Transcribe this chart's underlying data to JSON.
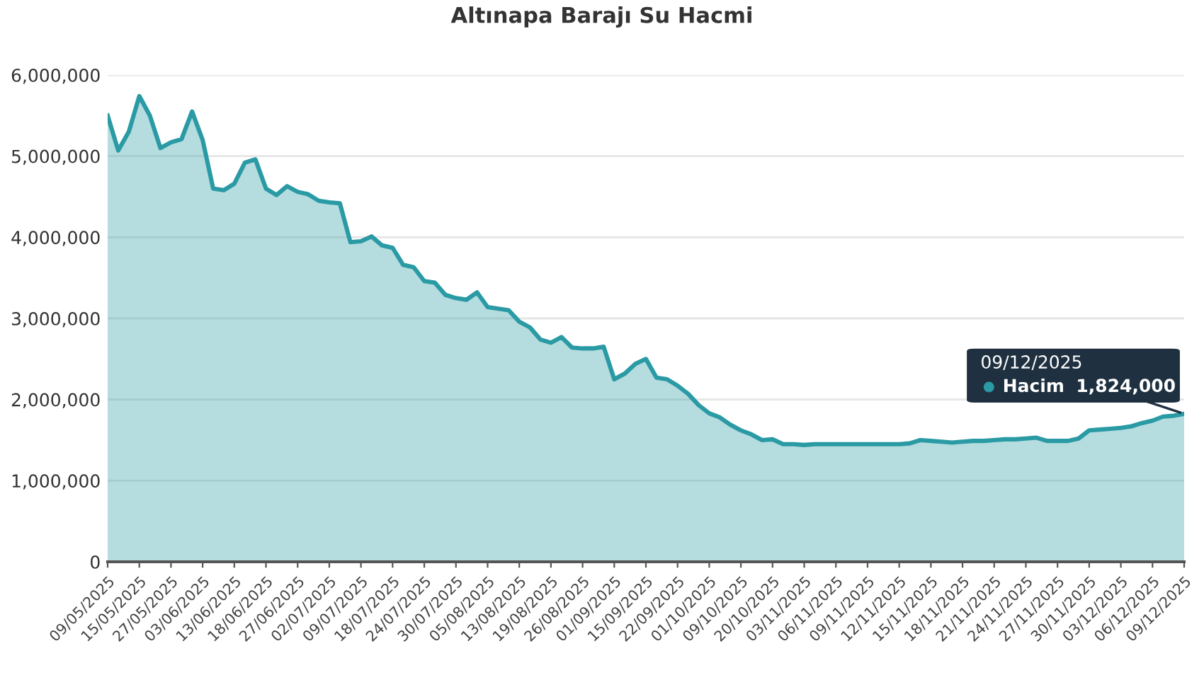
{
  "chart_data": {
    "type": "area",
    "title": "Altınapa Barajı Su Hacmi",
    "categories": [
      "09/05/2025",
      null,
      null,
      "15/05/2025",
      null,
      null,
      "27/05/2025",
      null,
      null,
      "03/06/2025",
      null,
      null,
      "13/06/2025",
      null,
      null,
      "18/06/2025",
      null,
      null,
      "27/06/2025",
      null,
      null,
      "02/07/2025",
      null,
      null,
      "09/07/2025",
      null,
      null,
      "18/07/2025",
      null,
      null,
      "24/07/2025",
      null,
      null,
      "30/07/2025",
      null,
      null,
      "05/08/2025",
      null,
      null,
      "13/08/2025",
      null,
      null,
      "19/08/2025",
      null,
      null,
      "26/08/2025",
      null,
      null,
      "01/09/2025",
      null,
      null,
      "15/09/2025",
      null,
      null,
      "22/09/2025",
      null,
      null,
      "01/10/2025",
      null,
      null,
      "09/10/2025",
      null,
      null,
      "20/10/2025",
      null,
      null,
      "03/11/2025",
      null,
      null,
      "06/11/2025",
      null,
      null,
      "09/11/2025",
      null,
      null,
      "12/11/2025",
      null,
      null,
      "15/11/2025",
      null,
      null,
      "18/11/2025",
      null,
      null,
      "21/11/2025",
      null,
      null,
      "24/11/2025",
      null,
      null,
      "27/11/2025",
      null,
      null,
      "30/11/2025",
      null,
      null,
      "03/12/2025",
      null,
      null,
      "06/12/2025",
      null,
      null,
      "09/12/2025"
    ],
    "series": [
      {
        "name": "Hacim",
        "color": "#2a9aa4",
        "values": [
          5500000,
          5070000,
          5300000,
          5740000,
          5500000,
          5100000,
          5170000,
          5210000,
          5550000,
          5200000,
          4600000,
          4580000,
          4660000,
          4920000,
          4960000,
          4600000,
          4520000,
          4630000,
          4560000,
          4530000,
          4450000,
          4430000,
          4420000,
          3940000,
          3950000,
          4010000,
          3900000,
          3870000,
          3660000,
          3630000,
          3460000,
          3440000,
          3290000,
          3250000,
          3230000,
          3320000,
          3140000,
          3120000,
          3100000,
          2960000,
          2890000,
          2740000,
          2700000,
          2770000,
          2640000,
          2630000,
          2630000,
          2650000,
          2250000,
          2320000,
          2440000,
          2500000,
          2270000,
          2250000,
          2170000,
          2070000,
          1930000,
          1830000,
          1780000,
          1690000,
          1620000,
          1570000,
          1500000,
          1510000,
          1450000,
          1450000,
          1440000,
          1450000,
          1450000,
          1450000,
          1450000,
          1450000,
          1450000,
          1450000,
          1450000,
          1450000,
          1460000,
          1500000,
          1490000,
          1480000,
          1470000,
          1480000,
          1490000,
          1490000,
          1500000,
          1510000,
          1510000,
          1520000,
          1530000,
          1490000,
          1490000,
          1490000,
          1520000,
          1620000,
          1630000,
          1640000,
          1650000,
          1670000,
          1710000,
          1740000,
          1790000,
          1800000,
          1824000
        ],
        "value_labels": [
          null,
          null,
          null,
          null,
          null,
          null,
          null,
          null,
          null,
          null,
          null,
          null,
          null,
          null,
          null,
          null,
          null,
          null,
          null,
          null,
          null,
          null,
          null,
          null,
          null,
          null,
          null,
          null,
          null,
          null,
          null,
          null,
          null,
          null,
          null,
          null,
          null,
          null,
          null,
          null,
          null,
          null,
          null,
          null,
          null,
          null,
          null,
          null,
          null,
          null,
          null,
          null,
          null,
          null,
          null,
          null,
          null,
          null,
          null,
          null,
          null,
          null,
          null,
          null,
          null,
          null,
          null,
          null,
          null,
          null,
          null,
          null,
          null,
          null,
          null,
          null,
          null,
          null,
          null,
          null,
          null,
          null,
          null,
          null,
          null,
          null,
          null,
          null,
          null,
          null,
          null,
          null,
          null,
          null,
          null,
          null,
          null,
          null,
          null,
          null,
          null,
          null,
          "1,824,000"
        ]
      }
    ],
    "ylim": [
      0,
      6000000
    ],
    "yticks": [
      0,
      {
        "value": 1000000,
        "label": "1,000,000"
      },
      {
        "value": 2000000,
        "label": "2,000,000"
      },
      {
        "value": 3000000,
        "label": "3,000,000"
      },
      {
        "value": 4000000,
        "label": "4,000,000"
      },
      {
        "value": 5000000,
        "label": "5,000,000"
      },
      {
        "value": 6000000,
        "label": "6,000,000"
      }
    ],
    "grid": "y",
    "legend": "right",
    "line_style": "solid",
    "marker": "none",
    "annotations": [
      {
        "text": "09/12/2025",
        "x": "09/12/2025",
        "y": 1824000
      }
    ]
  }
}
